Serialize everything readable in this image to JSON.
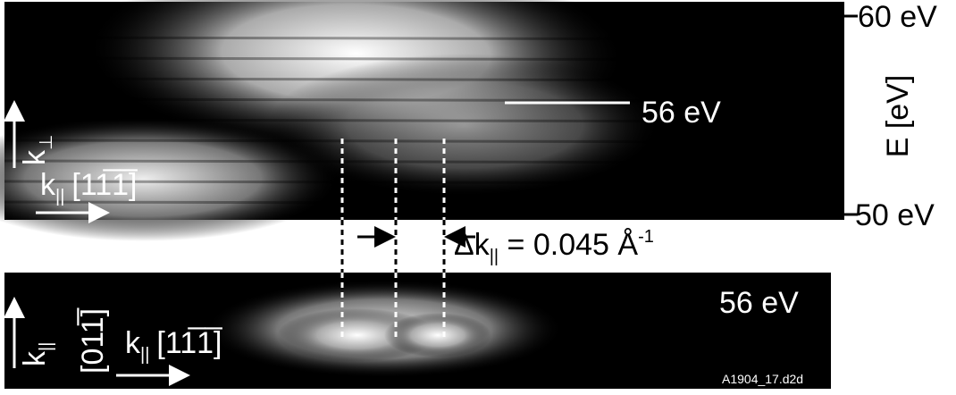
{
  "top_panel": {
    "energy_axis": {
      "label": "E [eV]",
      "top": "60 eV",
      "bottom": "50 eV"
    },
    "marker_label": "56 eV",
    "k_perp": {
      "symbol": "k",
      "subscript": "⊥"
    },
    "k_par": {
      "symbol": "k",
      "subscript": "||",
      "direction": "[11̅1̅]"
    }
  },
  "delta": {
    "symbol": "Δk",
    "subscript": "||",
    "text": " = 0.045 Å",
    "superscript": "-1"
  },
  "bottom_panel": {
    "energy": "56 eV",
    "k_vertical": {
      "symbol": "k",
      "subscript": "||",
      "direction": "[011̅]"
    },
    "k_par": {
      "symbol": "k",
      "subscript": "||",
      "direction": "[11̅1̅]"
    },
    "file": "A1904_17.d2d"
  }
}
